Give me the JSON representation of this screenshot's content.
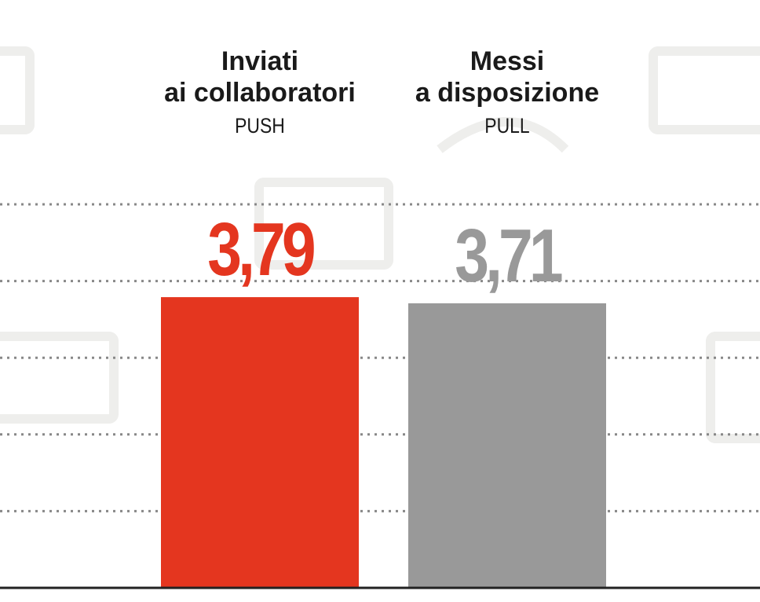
{
  "chart_data": {
    "type": "bar",
    "categories": [
      "Inviati\nai collaboratori",
      "Messi\na disposizione"
    ],
    "category_subtitles": [
      "PUSH",
      "PULL"
    ],
    "values": [
      3.79,
      3.71
    ],
    "value_labels": [
      "3,79",
      "3,71"
    ],
    "colors": [
      "#e4361f",
      "#999999"
    ],
    "ylim": [
      0,
      5
    ],
    "yticks": [
      1,
      2,
      3,
      4,
      5
    ],
    "grid": true
  }
}
